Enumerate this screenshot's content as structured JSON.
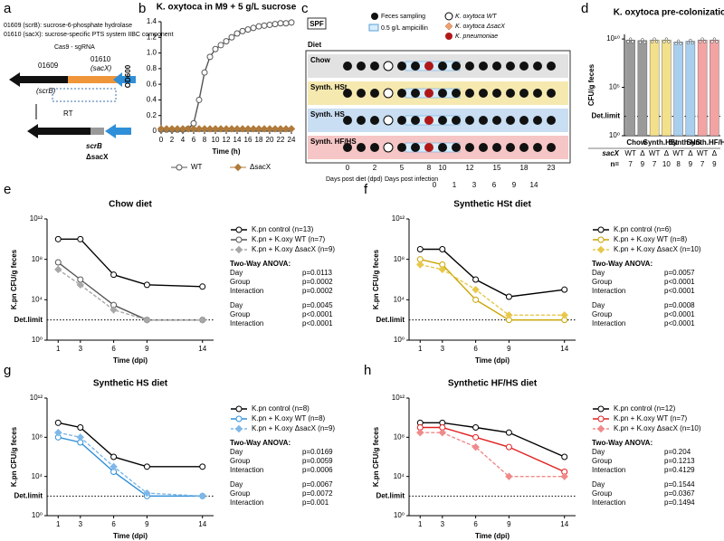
{
  "diagram_a": {
    "letter": "a",
    "notes": [
      "01609 (scrB): sucrose-6-phosphate hydrolase",
      "01610 (sacX): sucrose-specific PTS system IIBC component"
    ],
    "gene1": "01609",
    "gene1_name": "(scrB)",
    "gene2": "01610",
    "gene2_name": "(sacX)",
    "tool": "Cas9 - sgRNA",
    "step": "RT",
    "result1": "scrB",
    "result2": "ΔsacX"
  },
  "diagram_c": {
    "letter": "c",
    "housing": "SPF",
    "legend": [
      "Feces sampling",
      "0.5 g/L ampicillin",
      "K. oxytoca WT",
      "K. oxytoca ΔsacX",
      "K. pneumoniae"
    ],
    "diet_label": "Diet",
    "rows": [
      "Chow",
      "Synth. HSt",
      "Synth. HS",
      "Synth. HF/HS"
    ],
    "dpd_ticks": [
      "0",
      "2",
      "5",
      "8",
      "10",
      "12",
      "15",
      "18",
      "23"
    ],
    "dpd_label": "Days post diet (dpd)",
    "dpi_label": "Days post infection",
    "dpi_ticks": [
      "0",
      "1",
      "3",
      "6",
      "9",
      "14"
    ]
  },
  "chart_data": [
    {
      "type": "line",
      "letter": "b",
      "title": "K. oxytoca in M9 + 5 g/L sucrose",
      "xlabel": "Time (h)",
      "ylabel": "OD600",
      "x": [
        0,
        1,
        2,
        3,
        4,
        5,
        6,
        7,
        8,
        9,
        10,
        11,
        12,
        13,
        14,
        15,
        16,
        17,
        18,
        19,
        20,
        21,
        22,
        23,
        24
      ],
      "xlim": [
        0,
        24
      ],
      "xticks": [
        0,
        2,
        4,
        6,
        8,
        10,
        12,
        14,
        16,
        18,
        20,
        22,
        24
      ],
      "ylim": [
        0,
        1.4
      ],
      "yticks": [
        0,
        0.2,
        0.4,
        0.6,
        0.8,
        {
          "value": 1.0,
          "label": "1.0"
        },
        1.2,
        1.4
      ],
      "legend": "bottom",
      "series": [
        {
          "name": "WT",
          "color": "#555555",
          "marker": "circle",
          "values": [
            0.02,
            0.02,
            0.02,
            0.02,
            0.02,
            0.03,
            0.1,
            0.4,
            0.75,
            0.95,
            1.05,
            1.1,
            1.15,
            1.2,
            1.25,
            1.28,
            1.3,
            1.32,
            1.34,
            1.35,
            1.36,
            1.37,
            1.38,
            1.38,
            1.39
          ]
        },
        {
          "name": "ΔsacX",
          "color": "#b07a3a",
          "marker": "diamond",
          "values": [
            0.03,
            0.03,
            0.03,
            0.03,
            0.03,
            0.03,
            0.03,
            0.03,
            0.03,
            0.03,
            0.03,
            0.03,
            0.03,
            0.03,
            0.03,
            0.03,
            0.03,
            0.03,
            0.03,
            0.03,
            0.03,
            0.03,
            0.03,
            0.03,
            0.03
          ]
        }
      ]
    },
    {
      "type": "bar",
      "letter": "d",
      "title": "K. oxytoca pre-colonization",
      "ylabel": "CFU/g feces",
      "log": true,
      "ylim": [
        1,
        30000000000
      ],
      "yticks": [
        {
          "value": 1,
          "label": "10⁰"
        },
        {
          "value": 100000,
          "label": "10⁵"
        },
        {
          "value": 10000000000,
          "label": "10¹⁰"
        }
      ],
      "det_limit": {
        "value": 100,
        "label": "Det.limit"
      },
      "groups": [
        "Chow",
        "Synth.HSt",
        "Synth.HS",
        "Synth.HF/HS"
      ],
      "categories": [
        "WT",
        "Δ",
        "WT",
        "Δ",
        "WT",
        "Δ",
        "WT",
        "Δ"
      ],
      "colors": [
        "#9a9a9a",
        "#9a9a9a",
        "#f3e08a",
        "#f3e08a",
        "#a9cfee",
        "#a9cfee",
        "#f4a3a3",
        "#f4a3a3"
      ],
      "values": [
        8000000000,
        7000000000,
        8000000000,
        8000000000,
        5000000000,
        6000000000,
        8000000000,
        8000000000
      ],
      "x_row_label": "sacX",
      "n_label": "n=",
      "n": [
        7,
        9,
        7,
        10,
        8,
        9,
        7,
        9
      ]
    },
    {
      "type": "line",
      "letter": "e",
      "title": "Chow diet",
      "xlabel": "Time (dpi)",
      "ylabel": "K.pn CFU/g feces",
      "log": true,
      "x": [
        1,
        3,
        6,
        9,
        14
      ],
      "xlim": [
        0,
        15
      ],
      "xticks": [
        1,
        3,
        6,
        9,
        14
      ],
      "ylim": [
        1,
        1000000000000
      ],
      "yticks": [
        {
          "value": 1,
          "label": "10⁰"
        },
        {
          "value": 10000,
          "label": "10⁴"
        },
        {
          "value": 100000000,
          "label": "10⁸"
        },
        {
          "value": 1000000000000,
          "label": "10¹²"
        }
      ],
      "det_limit": {
        "value": 100,
        "label": "Det.limit"
      },
      "legend": "right",
      "series": [
        {
          "name": "K.pn control (n=13)",
          "color": "#000000",
          "marker": "circle",
          "values": [
            10000000000,
            10000000000,
            3000000,
            300000,
            200000
          ]
        },
        {
          "name": "K.pn + K.oxy WT (n=7)",
          "color": "#555555",
          "marker": "circle",
          "values": [
            50000000,
            1000000,
            3000,
            100,
            100
          ]
        },
        {
          "name": "K.pn + K.oxy ΔsacX (n=9)",
          "color": "#a8a8a8",
          "marker": "diamond",
          "dash": true,
          "values": [
            10000000,
            300000,
            1000,
            100,
            100
          ]
        }
      ],
      "stats_title": "Two-Way  ANOVA:",
      "stats": [
        {
          "color": "#000000",
          "rows": [
            [
              "Day",
              "p=0.0113"
            ],
            [
              "Group",
              "p=0.0002"
            ],
            [
              "Interaction",
              "p=0.0002"
            ]
          ]
        },
        {
          "color": "#a8a8a8",
          "rows": [
            [
              "Day",
              "p=0.0045"
            ],
            [
              "Group",
              "p<0.0001"
            ],
            [
              "Interaction",
              "p<0.0001"
            ]
          ]
        }
      ]
    },
    {
      "type": "line",
      "letter": "f",
      "title": "Synthetic HSt diet",
      "xlabel": "Time (dpi)",
      "ylabel": "K.pn CFU/g feces",
      "log": true,
      "x": [
        1,
        3,
        6,
        9,
        14
      ],
      "xlim": [
        0,
        15
      ],
      "xticks": [
        1,
        3,
        6,
        9,
        14
      ],
      "ylim": [
        1,
        1000000000000
      ],
      "yticks": [
        {
          "value": 1,
          "label": "10⁰"
        },
        {
          "value": 10000,
          "label": "10⁴"
        },
        {
          "value": 100000000,
          "label": "10⁸"
        },
        {
          "value": 1000000000000,
          "label": "10¹²"
        }
      ],
      "det_limit": {
        "value": 100,
        "label": "Det.limit"
      },
      "legend": "right",
      "series": [
        {
          "name": "K.pn control (n=6)",
          "color": "#000000",
          "marker": "circle",
          "values": [
            1000000000,
            1000000000,
            1000000,
            20000,
            100000
          ]
        },
        {
          "name": "K.pn + K.oxy WT (n=8)",
          "color": "#c9a400",
          "marker": "circle",
          "values": [
            100000000,
            30000000,
            10000,
            100,
            100
          ]
        },
        {
          "name": "K.pn + K.oxy ΔsacX (n=10)",
          "color": "#e8c84a",
          "marker": "diamond",
          "dash": true,
          "values": [
            30000000,
            10000000,
            100000,
            300,
            300
          ]
        }
      ],
      "stats_title": "Two-Way  ANOVA:",
      "stats": [
        {
          "color": "#a88a00",
          "rows": [
            [
              "Day",
              "p=0.0057"
            ],
            [
              "Group",
              "p<0.0001"
            ],
            [
              "Interaction",
              "p<0.0001"
            ]
          ]
        },
        {
          "color": "#e0b830",
          "rows": [
            [
              "Day",
              "p=0.0008"
            ],
            [
              "Group",
              "p<0.0001"
            ],
            [
              "Interaction",
              "p<0.0001"
            ]
          ]
        }
      ]
    },
    {
      "type": "line",
      "letter": "g",
      "title": "Synthetic HS diet",
      "xlabel": "Time (dpi)",
      "ylabel": "K.pn CFU/g feces",
      "log": true,
      "x": [
        1,
        3,
        6,
        9,
        14
      ],
      "xlim": [
        0,
        15
      ],
      "xticks": [
        1,
        3,
        6,
        9,
        14
      ],
      "ylim": [
        1,
        1000000000000
      ],
      "yticks": [
        {
          "value": 1,
          "label": "10⁰"
        },
        {
          "value": 10000,
          "label": "10⁴"
        },
        {
          "value": 100000000,
          "label": "10⁸"
        },
        {
          "value": 1000000000000,
          "label": "10¹²"
        }
      ],
      "det_limit": {
        "value": 100,
        "label": "Det.limit"
      },
      "legend": "right",
      "series": [
        {
          "name": "K.pn control (n=8)",
          "color": "#000000",
          "marker": "circle",
          "values": [
            3000000000,
            1000000000,
            1000000,
            100000,
            100000
          ]
        },
        {
          "name": "K.pn + K.oxy WT (n=8)",
          "color": "#2f8fd8",
          "marker": "circle",
          "values": [
            100000000,
            30000000,
            30000,
            100,
            100
          ]
        },
        {
          "name": "K.pn + K.oxy ΔsacX (n=9)",
          "color": "#7fb8e8",
          "marker": "diamond",
          "dash": true,
          "values": [
            300000000,
            100000000,
            100000,
            200,
            100
          ]
        }
      ],
      "stats_title": "Two-Way  ANOVA:",
      "stats": [
        {
          "color": "#2f8fd8",
          "rows": [
            [
              "Day",
              "p=0.0169"
            ],
            [
              "Group",
              "p=0.0059"
            ],
            [
              "Interaction",
              "p=0.0006"
            ]
          ]
        },
        {
          "color": "#7fb8e8",
          "rows": [
            [
              "Day",
              "p=0.0067"
            ],
            [
              "Group",
              "p=0.0072"
            ],
            [
              "Interaction",
              "p=0.001"
            ]
          ]
        }
      ]
    },
    {
      "type": "line",
      "letter": "h",
      "title": "Synthetic HF/HS diet",
      "xlabel": "Time (dpi)",
      "ylabel": "K.pn CFU/g feces",
      "log": true,
      "x": [
        1,
        3,
        6,
        9,
        14
      ],
      "xlim": [
        0,
        15
      ],
      "xticks": [
        1,
        3,
        6,
        9,
        14
      ],
      "ylim": [
        1,
        1000000000000
      ],
      "yticks": [
        {
          "value": 1,
          "label": "10⁰"
        },
        {
          "value": 10000,
          "label": "10⁴"
        },
        {
          "value": 100000000,
          "label": "10⁸"
        },
        {
          "value": 1000000000000,
          "label": "10¹²"
        }
      ],
      "det_limit": {
        "value": 100,
        "label": "Det.limit"
      },
      "legend": "right",
      "series": [
        {
          "name": "K.pn control (n=12)",
          "color": "#000000",
          "marker": "circle",
          "values": [
            3000000000,
            3000000000,
            1000000000,
            300000000,
            1000000
          ]
        },
        {
          "name": "K.pn + K.oxy WT (n=7)",
          "color": "#e02020",
          "marker": "circle",
          "values": [
            1000000000,
            1000000000,
            100000000,
            10000000,
            30000
          ]
        },
        {
          "name": "K.pn + K.oxy ΔsacX (n=10)",
          "color": "#f08a8a",
          "marker": "diamond",
          "dash": true,
          "values": [
            300000000,
            300000000,
            10000000,
            10000,
            10000
          ]
        }
      ],
      "stats_title": "Two-Way  ANOVA:",
      "stats": [
        {
          "color": "#e02020",
          "rows": [
            [
              "Day",
              "p=0.204"
            ],
            [
              "Group",
              "p=0.1213"
            ],
            [
              "Interaction",
              "p=0.4129"
            ]
          ]
        },
        {
          "color": "#f4a0a0",
          "rows": [
            [
              "Day",
              "p=0.1544"
            ],
            [
              "Group",
              "p=0.0367"
            ],
            [
              "Interaction",
              "p=0.1494"
            ]
          ]
        }
      ]
    }
  ]
}
